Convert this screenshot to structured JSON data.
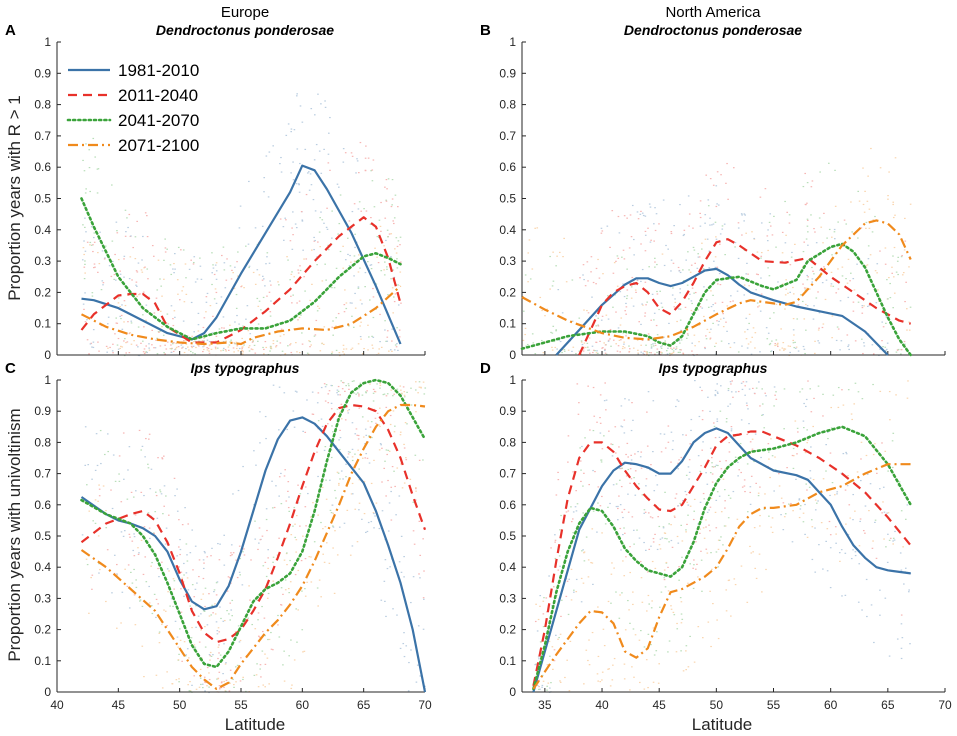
{
  "figure": {
    "col_titles": [
      "Europe",
      "North America"
    ],
    "row_ylabels": [
      "Proportion years with R > 1",
      "Proportion years with univoltinism"
    ],
    "xlabel": "Latitude"
  },
  "colors": {
    "1981-2010": "#3b73a8",
    "2011-2040": "#e8312a",
    "2041-2070": "#3aa33a",
    "2071-2100": "#f08a1c",
    "axis": "#262626"
  },
  "legend": {
    "placement": "top-left of panel A",
    "entries": [
      "1981-2010",
      "2011-2040",
      "2041-2070",
      "2071-2100"
    ]
  },
  "chart_data": [
    {
      "type": "line",
      "panel": "A",
      "region": "Europe",
      "species": "Dendroctonus ponderosae",
      "xlim": [
        40,
        70
      ],
      "ylim": [
        0,
        1
      ],
      "xticks": [
        40,
        45,
        50,
        55,
        60,
        65,
        70
      ],
      "yticks": [
        0,
        0.1,
        0.2,
        0.3,
        0.4,
        0.5,
        0.6,
        0.7,
        0.8,
        0.9,
        1
      ],
      "series": [
        {
          "name": "1981-2010",
          "x": [
            42,
            43,
            45,
            47,
            49,
            51,
            52,
            53,
            55,
            57,
            59,
            60,
            61,
            62,
            64,
            66,
            68
          ],
          "y": [
            0.18,
            0.175,
            0.15,
            0.11,
            0.07,
            0.05,
            0.07,
            0.12,
            0.26,
            0.39,
            0.52,
            0.605,
            0.59,
            0.53,
            0.39,
            0.22,
            0.035
          ]
        },
        {
          "name": "2011-2040",
          "x": [
            42,
            43,
            45,
            46,
            47,
            48,
            49,
            51,
            53,
            55,
            57,
            59,
            61,
            63,
            65,
            66,
            67,
            68
          ],
          "y": [
            0.08,
            0.13,
            0.19,
            0.195,
            0.195,
            0.165,
            0.09,
            0.04,
            0.04,
            0.08,
            0.14,
            0.21,
            0.3,
            0.38,
            0.44,
            0.41,
            0.31,
            0.165
          ]
        },
        {
          "name": "2041-2070",
          "x": [
            42,
            43,
            45,
            47,
            49,
            51,
            53,
            55,
            57,
            59,
            61,
            63,
            65,
            66,
            67,
            68
          ],
          "y": [
            0.5,
            0.41,
            0.25,
            0.15,
            0.09,
            0.05,
            0.07,
            0.085,
            0.085,
            0.11,
            0.17,
            0.25,
            0.315,
            0.325,
            0.31,
            0.29
          ]
        },
        {
          "name": "2071-2100",
          "x": [
            42,
            44,
            46,
            48,
            50,
            52,
            54,
            55,
            56,
            58,
            60,
            62,
            64,
            66,
            68
          ],
          "y": [
            0.13,
            0.09,
            0.065,
            0.05,
            0.04,
            0.035,
            0.04,
            0.035,
            0.055,
            0.075,
            0.085,
            0.08,
            0.1,
            0.15,
            0.22
          ]
        }
      ]
    },
    {
      "type": "line",
      "panel": "B",
      "region": "North America",
      "species": "Dendroctonus ponderosae",
      "xlim": [
        33,
        70
      ],
      "ylim": [
        0,
        1
      ],
      "xticks": [
        35,
        40,
        45,
        50,
        55,
        60,
        65,
        70
      ],
      "yticks": [
        0,
        0.1,
        0.2,
        0.3,
        0.4,
        0.5,
        0.6,
        0.7,
        0.8,
        0.9,
        1
      ],
      "series": [
        {
          "name": "1981-2010",
          "x": [
            36,
            38,
            40,
            42,
            43,
            44,
            45,
            46,
            47,
            48,
            49,
            50,
            51,
            52,
            53,
            55,
            57,
            59,
            61,
            63,
            65
          ],
          "y": [
            0,
            0.08,
            0.16,
            0.225,
            0.245,
            0.245,
            0.23,
            0.22,
            0.23,
            0.25,
            0.27,
            0.275,
            0.255,
            0.225,
            0.2,
            0.175,
            0.155,
            0.14,
            0.125,
            0.075,
            0
          ]
        },
        {
          "name": "2011-2040",
          "x": [
            38,
            39,
            40,
            41,
            42,
            43,
            44,
            45,
            46,
            47,
            48,
            49,
            50,
            51,
            52,
            54,
            56,
            58,
            60,
            62,
            64,
            66,
            67
          ],
          "y": [
            0,
            0.08,
            0.16,
            0.2,
            0.22,
            0.23,
            0.2,
            0.15,
            0.13,
            0.17,
            0.23,
            0.3,
            0.36,
            0.37,
            0.35,
            0.3,
            0.295,
            0.31,
            0.25,
            0.2,
            0.15,
            0.11,
            0.1
          ]
        },
        {
          "name": "2041-2070",
          "x": [
            33,
            35,
            37,
            40,
            42,
            44,
            45,
            46,
            47,
            48,
            49,
            50,
            52,
            54,
            55,
            57,
            58,
            60,
            61,
            62,
            63,
            64,
            65,
            66,
            67
          ],
          "y": [
            0.02,
            0.04,
            0.06,
            0.075,
            0.075,
            0.06,
            0.04,
            0.03,
            0.06,
            0.13,
            0.2,
            0.24,
            0.25,
            0.22,
            0.21,
            0.24,
            0.3,
            0.345,
            0.355,
            0.33,
            0.28,
            0.2,
            0.12,
            0.05,
            0
          ]
        },
        {
          "name": "2071-2100",
          "x": [
            33,
            35,
            37,
            40,
            42,
            44,
            46,
            48,
            50,
            52,
            53,
            55,
            56,
            57,
            59,
            61,
            63,
            64,
            65,
            66,
            67
          ],
          "y": [
            0.185,
            0.145,
            0.11,
            0.07,
            0.055,
            0.05,
            0.06,
            0.09,
            0.13,
            0.165,
            0.175,
            0.165,
            0.16,
            0.17,
            0.25,
            0.35,
            0.42,
            0.43,
            0.42,
            0.385,
            0.305
          ]
        }
      ]
    },
    {
      "type": "line",
      "panel": "C",
      "region": "Europe",
      "species": "Ips typographus",
      "xlim": [
        40,
        70
      ],
      "ylim": [
        0,
        1
      ],
      "xticks": [
        40,
        45,
        50,
        55,
        60,
        65,
        70
      ],
      "yticks": [
        0,
        0.1,
        0.2,
        0.3,
        0.4,
        0.5,
        0.6,
        0.7,
        0.8,
        0.9,
        1
      ],
      "series": [
        {
          "name": "1981-2010",
          "x": [
            42,
            44,
            45,
            46,
            47,
            48,
            49,
            50,
            51,
            52,
            53,
            54,
            55,
            56,
            57,
            58,
            59,
            60,
            61,
            62,
            63,
            64,
            65,
            66,
            67,
            68,
            69,
            70
          ],
          "y": [
            0.625,
            0.57,
            0.55,
            0.54,
            0.525,
            0.5,
            0.45,
            0.36,
            0.29,
            0.265,
            0.275,
            0.34,
            0.45,
            0.58,
            0.71,
            0.81,
            0.87,
            0.88,
            0.86,
            0.82,
            0.77,
            0.72,
            0.67,
            0.58,
            0.47,
            0.35,
            0.2,
            0
          ]
        },
        {
          "name": "2011-2040",
          "x": [
            42,
            44,
            46,
            47,
            48,
            49,
            50,
            51,
            52,
            53,
            54,
            55,
            56,
            57,
            58,
            59,
            60,
            61,
            62,
            63,
            64,
            65,
            66,
            67,
            68,
            69,
            70
          ],
          "y": [
            0.48,
            0.54,
            0.57,
            0.58,
            0.55,
            0.48,
            0.38,
            0.26,
            0.19,
            0.16,
            0.17,
            0.2,
            0.26,
            0.33,
            0.43,
            0.54,
            0.66,
            0.77,
            0.86,
            0.91,
            0.92,
            0.915,
            0.9,
            0.84,
            0.75,
            0.63,
            0.52
          ]
        },
        {
          "name": "2041-2070",
          "x": [
            42,
            44,
            46,
            47,
            48,
            49,
            50,
            51,
            52,
            53,
            54,
            55,
            56,
            57,
            58,
            59,
            60,
            61,
            62,
            63,
            64,
            65,
            66,
            67,
            68,
            69,
            70
          ],
          "y": [
            0.615,
            0.57,
            0.54,
            0.5,
            0.44,
            0.35,
            0.25,
            0.15,
            0.09,
            0.08,
            0.13,
            0.21,
            0.29,
            0.33,
            0.35,
            0.38,
            0.45,
            0.58,
            0.74,
            0.88,
            0.96,
            0.99,
            1.0,
            0.99,
            0.95,
            0.88,
            0.81
          ]
        },
        {
          "name": "2071-2100",
          "x": [
            42,
            44,
            46,
            48,
            49,
            50,
            51,
            52,
            53,
            54,
            55,
            56,
            57,
            58,
            59,
            60,
            61,
            62,
            63,
            64,
            65,
            66,
            67,
            68,
            69,
            70
          ],
          "y": [
            0.455,
            0.4,
            0.33,
            0.26,
            0.2,
            0.14,
            0.08,
            0.04,
            0.01,
            0.03,
            0.09,
            0.14,
            0.19,
            0.23,
            0.28,
            0.34,
            0.42,
            0.51,
            0.6,
            0.7,
            0.78,
            0.85,
            0.9,
            0.92,
            0.92,
            0.915
          ]
        }
      ]
    },
    {
      "type": "line",
      "panel": "D",
      "region": "North America",
      "species": "Ips typographus",
      "xlim": [
        33,
        70
      ],
      "ylim": [
        0,
        1
      ],
      "xticks": [
        35,
        40,
        45,
        50,
        55,
        60,
        65,
        70
      ],
      "yticks": [
        0,
        0.1,
        0.2,
        0.3,
        0.4,
        0.5,
        0.6,
        0.7,
        0.8,
        0.9,
        1
      ],
      "series": [
        {
          "name": "1981-2010",
          "x": [
            34,
            36,
            38,
            40,
            41,
            42,
            43,
            44,
            45,
            46,
            47,
            48,
            49,
            50,
            51,
            52,
            53,
            55,
            57,
            58,
            59,
            60,
            61,
            62,
            63,
            64,
            65,
            66,
            67
          ],
          "y": [
            0,
            0.26,
            0.52,
            0.66,
            0.71,
            0.735,
            0.73,
            0.72,
            0.7,
            0.7,
            0.74,
            0.8,
            0.83,
            0.845,
            0.83,
            0.79,
            0.75,
            0.71,
            0.695,
            0.68,
            0.64,
            0.6,
            0.53,
            0.47,
            0.43,
            0.4,
            0.39,
            0.385,
            0.38
          ]
        },
        {
          "name": "2011-2040",
          "x": [
            34,
            35,
            36,
            37,
            38,
            39,
            40,
            41,
            42,
            43,
            44,
            45,
            46,
            47,
            48,
            49,
            50,
            51,
            52,
            53,
            54,
            55,
            57,
            59,
            61,
            63,
            65,
            67
          ],
          "y": [
            0.02,
            0.2,
            0.42,
            0.62,
            0.75,
            0.8,
            0.8,
            0.77,
            0.71,
            0.66,
            0.62,
            0.585,
            0.58,
            0.6,
            0.66,
            0.72,
            0.79,
            0.82,
            0.825,
            0.835,
            0.835,
            0.82,
            0.79,
            0.75,
            0.7,
            0.64,
            0.56,
            0.47
          ]
        },
        {
          "name": "2041-2070",
          "x": [
            34,
            35,
            36,
            37,
            38,
            39,
            40,
            41,
            42,
            43,
            44,
            45,
            46,
            47,
            48,
            49,
            50,
            51,
            52,
            53,
            55,
            57,
            59,
            61,
            63,
            65,
            67
          ],
          "y": [
            0.01,
            0.15,
            0.32,
            0.45,
            0.54,
            0.59,
            0.58,
            0.53,
            0.46,
            0.42,
            0.39,
            0.38,
            0.37,
            0.4,
            0.48,
            0.59,
            0.67,
            0.72,
            0.75,
            0.77,
            0.78,
            0.8,
            0.83,
            0.85,
            0.82,
            0.73,
            0.6
          ]
        },
        {
          "name": "2071-2100",
          "x": [
            34,
            36,
            38,
            39,
            40,
            41,
            42,
            43,
            44,
            45,
            46,
            47,
            48,
            49,
            50,
            51,
            52,
            53,
            54,
            55,
            57,
            59,
            61,
            63,
            65,
            67
          ],
          "y": [
            0.01,
            0.12,
            0.22,
            0.26,
            0.255,
            0.22,
            0.13,
            0.11,
            0.14,
            0.24,
            0.32,
            0.33,
            0.35,
            0.37,
            0.4,
            0.46,
            0.53,
            0.57,
            0.59,
            0.59,
            0.6,
            0.64,
            0.66,
            0.7,
            0.73,
            0.73
          ]
        }
      ]
    }
  ]
}
